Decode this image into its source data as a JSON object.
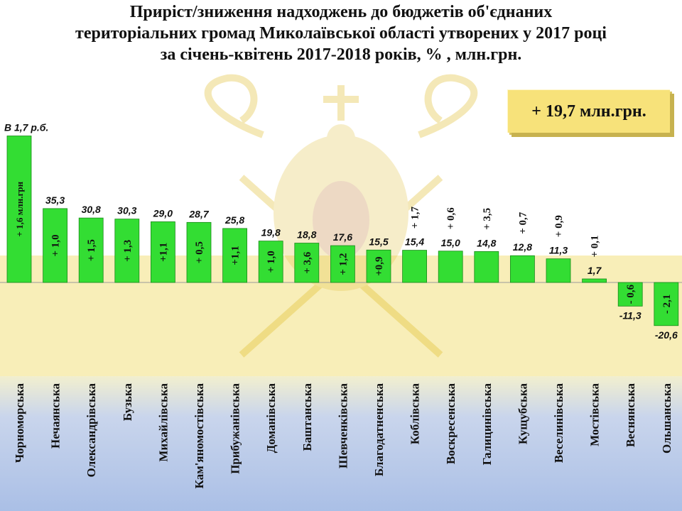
{
  "title": {
    "line1": "Приріст/зниження надходжень до бюджетів об'єднаних",
    "line2": "територіальних громад Миколаївської області утворених у 2017 році",
    "line3": "за січень-квітень 2017-2018 років, % , млн.грн."
  },
  "callout": "+ 19,7 млн.грн.",
  "colors": {
    "bar": "#33dd33",
    "bar_stroke": "#1a8a1a",
    "background_upper": "#ffffff",
    "background_middle": "#f8eeb8",
    "background_lower": "#aabfe6",
    "callout_fill": "#f7e27a"
  },
  "chart_data": {
    "type": "bar",
    "categories": [
      "Чорноморська",
      "Нечаянська",
      "Олександрівська",
      "Бузька",
      "Михайлівська",
      "Кам'яномостівська",
      "Прибужанівська",
      "Доманівська",
      "Баштанська",
      "Шевченківська",
      "Благодатненська",
      "Коблівська",
      "Воскресенська",
      "Галицинівська",
      "Кущубська",
      "Веселинівська",
      "Мостівська",
      "Веснянська",
      "Ольшанська"
    ],
    "value_labels": [
      "В 1,7 р.б.",
      "35,3",
      "30,8",
      "30,3",
      "29,0",
      "28,7",
      "25,8",
      "19,8",
      "18,8",
      "17,6",
      "15,5",
      "15,4",
      "15,0",
      "14,8",
      "12,8",
      "11,3",
      "1,7",
      "-11,3",
      "-20,6"
    ],
    "values": [
      70,
      35.3,
      30.8,
      30.3,
      29.0,
      28.7,
      25.8,
      19.8,
      18.8,
      17.6,
      15.5,
      15.4,
      15.0,
      14.8,
      12.8,
      11.3,
      1.7,
      -11.3,
      -20.6
    ],
    "growth_labels": [
      "+ 1,6 млн.грн",
      "+ 1,0",
      "+ 1,5",
      "+ 1,3",
      "+1,1",
      "+ 0,5",
      "+1,1",
      "+ 1,0",
      "+ 3,6",
      "+ 1,2",
      "+0,9",
      "+ 1,7",
      "+ 0,6",
      "+ 3,5",
      "+ 0,7",
      "+ 0,9",
      "+ 0,1",
      "- 0,6",
      "- 2,1"
    ],
    "growth_label_position": [
      "inside",
      "inside",
      "inside",
      "inside",
      "inside",
      "inside",
      "inside",
      "inside",
      "inside",
      "inside",
      "inside",
      "above",
      "above",
      "above",
      "above",
      "above",
      "above",
      "inside",
      "inside"
    ]
  }
}
